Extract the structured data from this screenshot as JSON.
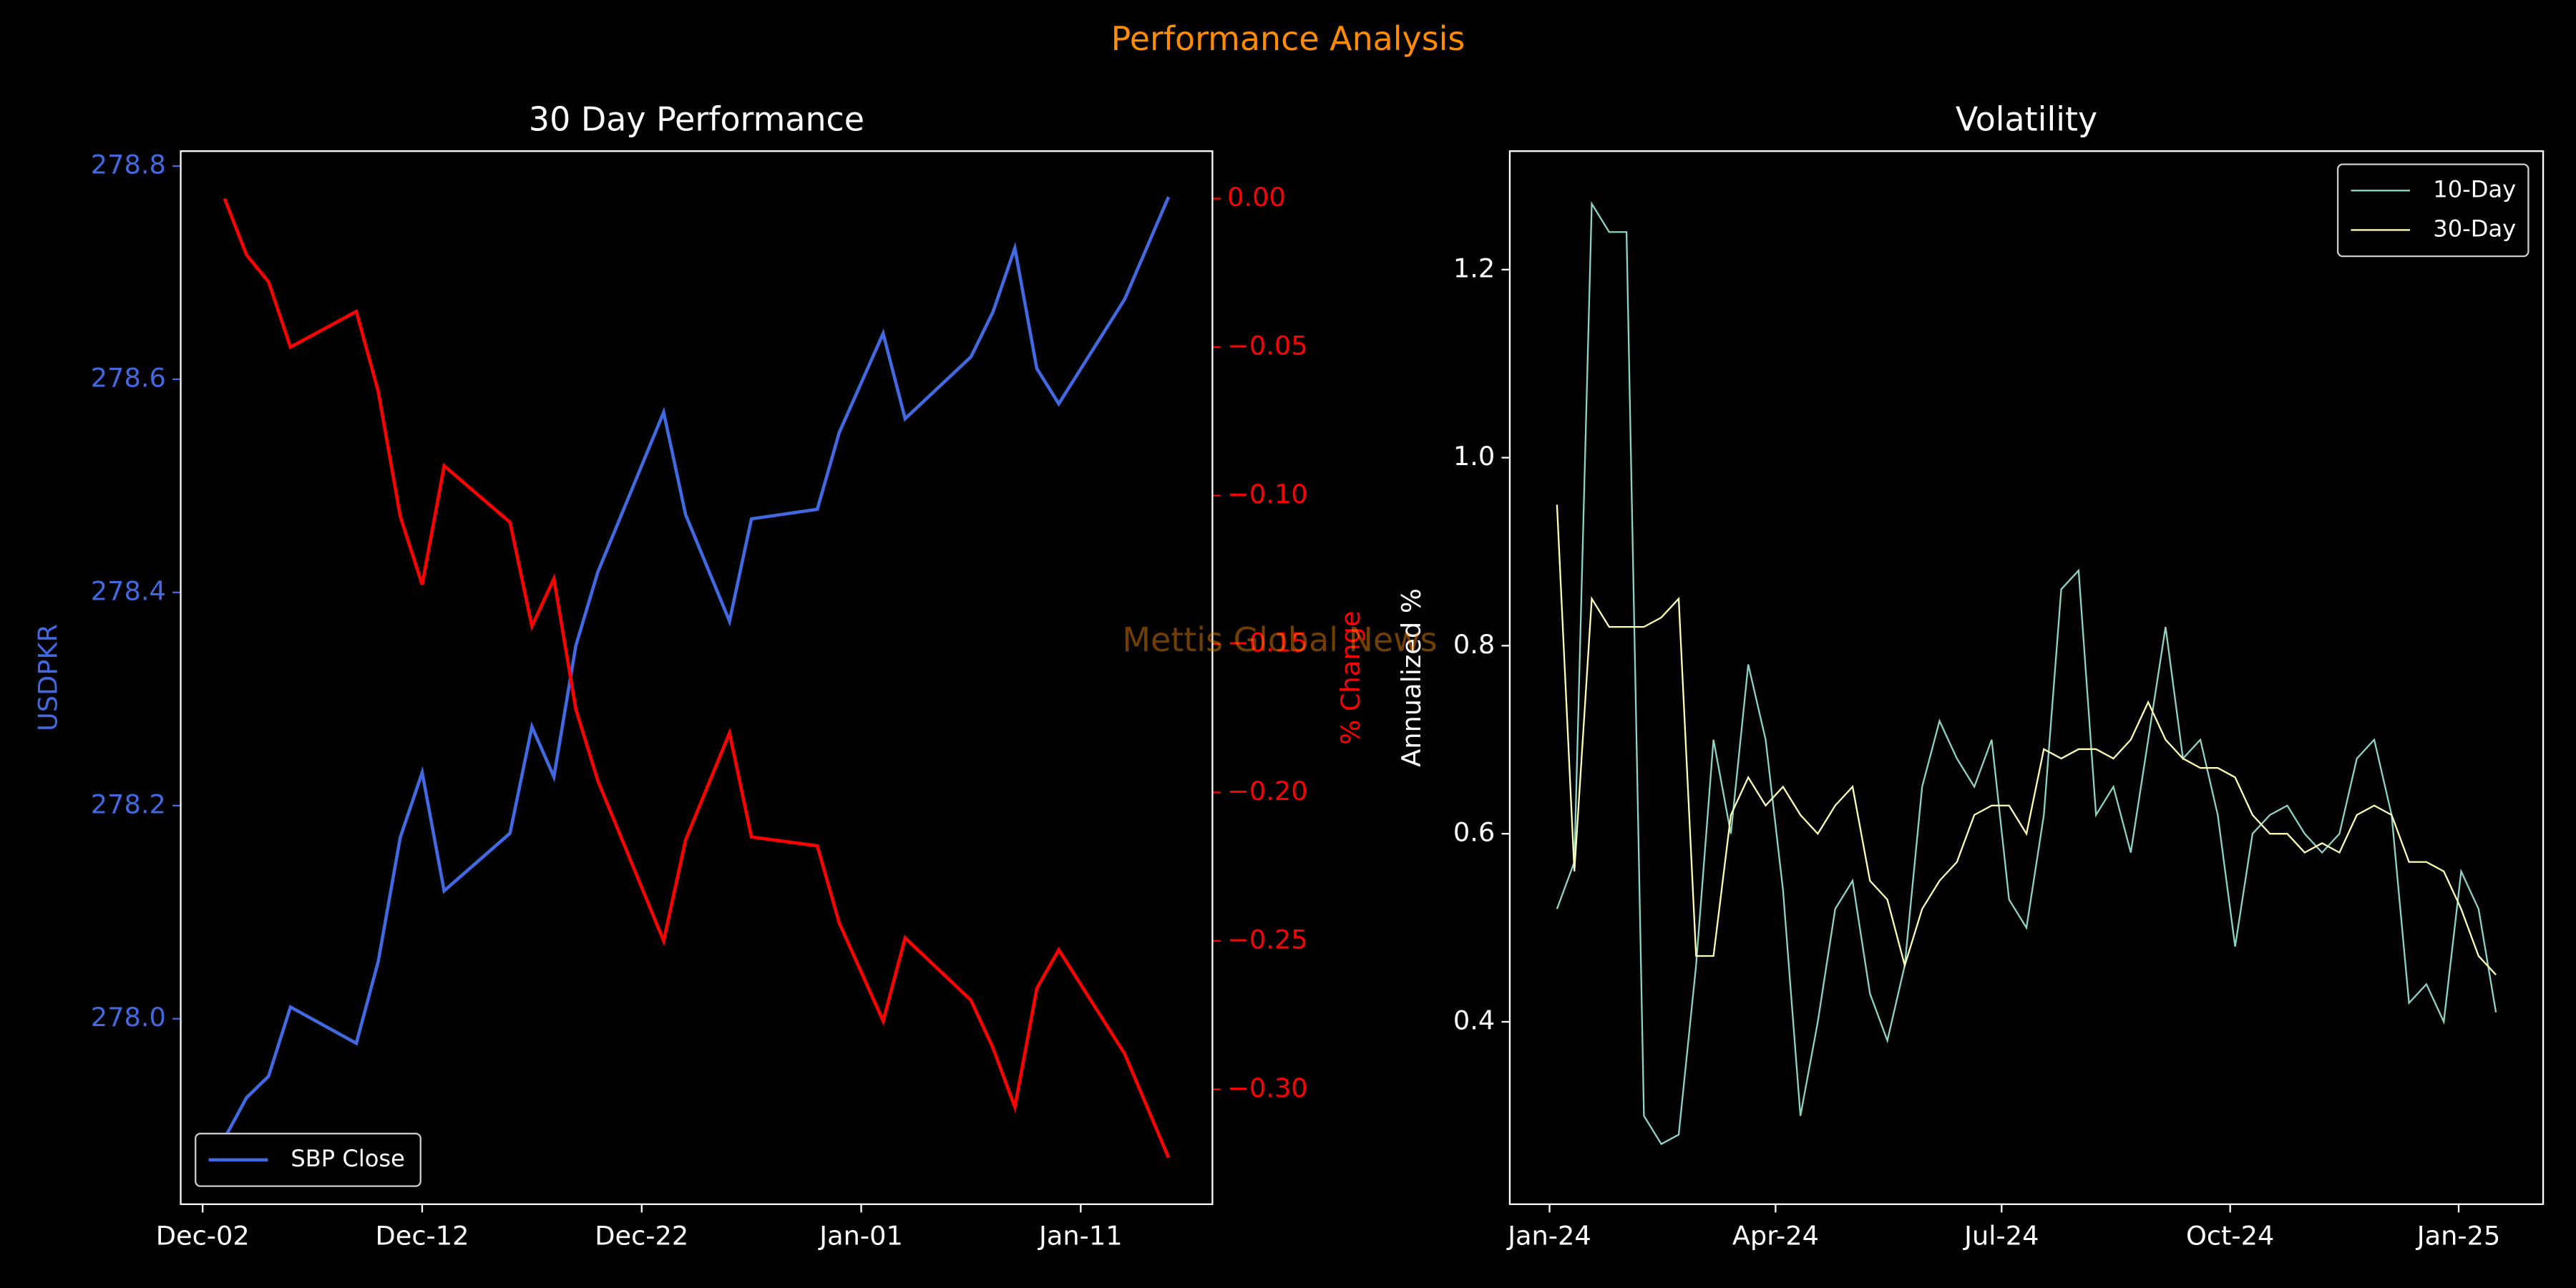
{
  "title": "Performance Analysis",
  "watermark": "Mettis Global News",
  "chart_data": [
    {
      "type": "line",
      "title": "30 Day Performance",
      "ylabel": "USDPKR",
      "y2label": "% Change",
      "x": [
        "Dec-03",
        "Dec-04",
        "Dec-05",
        "Dec-06",
        "Dec-09",
        "Dec-10",
        "Dec-11",
        "Dec-12",
        "Dec-13",
        "Dec-16",
        "Dec-17",
        "Dec-18",
        "Dec-19",
        "Dec-20",
        "Dec-23",
        "Dec-24",
        "Dec-26",
        "Dec-27",
        "Dec-30",
        "Dec-31",
        "Jan-02",
        "Jan-03",
        "Jan-06",
        "Jan-07",
        "Jan-08",
        "Jan-09",
        "Jan-10",
        "Jan-13",
        "Jan-15"
      ],
      "xlim": [
        "Dec-01",
        "Jan-17"
      ],
      "xticks": [
        "Dec-02",
        "Dec-12",
        "Dec-22",
        "Jan-01",
        "Jan-11"
      ],
      "ylim": [
        277.826,
        278.814
      ],
      "yticks": [
        {
          "value": 278.0,
          "label": "278.0"
        },
        278.2,
        278.4,
        278.6,
        278.8
      ],
      "y2lim": [
        -0.3387,
        0.016
      ],
      "y2ticks": [
        {
          "value": 0,
          "label": "0.00"
        },
        {
          "value": -0.05,
          "label": "−0.05"
        },
        {
          "value": -0.1,
          "label": "−0.10"
        },
        {
          "value": -0.15,
          "label": "−0.15"
        },
        {
          "value": -0.2,
          "label": "−0.20"
        },
        {
          "value": -0.25,
          "label": "−0.25"
        },
        {
          "value": -0.3,
          "label": "−0.30"
        }
      ],
      "legend": "lower left",
      "series": [
        {
          "name": "SBP Close",
          "color": "#4169e1",
          "values": [
            277.888,
            277.926,
            277.946,
            278.011,
            277.977,
            278.054,
            278.17,
            278.231,
            278.12,
            278.174,
            278.274,
            278.227,
            278.35,
            278.419,
            278.569,
            278.473,
            278.373,
            278.469,
            278.478,
            278.55,
            278.643,
            278.563,
            278.621,
            278.663,
            278.723,
            278.61,
            278.577,
            278.675,
            278.771
          ]
        },
        {
          "color": "#ff0000",
          "axis": "y2",
          "values": [
            0.0,
            -0.019,
            -0.028,
            -0.05,
            -0.038,
            -0.065,
            -0.107,
            -0.13,
            -0.09,
            -0.109,
            -0.144,
            -0.128,
            -0.172,
            -0.196,
            -0.25,
            -0.216,
            -0.18,
            -0.215,
            -0.218,
            -0.244,
            -0.277,
            -0.249,
            -0.27,
            -0.286,
            -0.306,
            -0.266,
            -0.253,
            -0.288,
            -0.323
          ]
        }
      ]
    },
    {
      "type": "line",
      "title": "Volatility",
      "ylabel": "Annualized %",
      "x": [
        "2024-01-04",
        "2024-01-11",
        "2024-01-18",
        "2024-01-25",
        "2024-02-01",
        "2024-02-08",
        "2024-02-15",
        "2024-02-22",
        "2024-02-29",
        "2024-03-07",
        "2024-03-14",
        "2024-03-21",
        "2024-03-28",
        "2024-04-04",
        "2024-04-11",
        "2024-04-18",
        "2024-04-25",
        "2024-05-02",
        "2024-05-09",
        "2024-05-16",
        "2024-05-23",
        "2024-05-30",
        "2024-06-06",
        "2024-06-13",
        "2024-06-20",
        "2024-06-27",
        "2024-07-04",
        "2024-07-11",
        "2024-07-18",
        "2024-07-25",
        "2024-08-01",
        "2024-08-08",
        "2024-08-15",
        "2024-08-22",
        "2024-08-29",
        "2024-09-05",
        "2024-09-12",
        "2024-09-19",
        "2024-09-26",
        "2024-10-03",
        "2024-10-10",
        "2024-10-17",
        "2024-10-24",
        "2024-10-31",
        "2024-11-07",
        "2024-11-14",
        "2024-11-21",
        "2024-11-28",
        "2024-12-05",
        "2024-12-12",
        "2024-12-19",
        "2024-12-26",
        "2025-01-02",
        "2025-01-09",
        "2025-01-16"
      ],
      "xlim": [
        "2023-12-16",
        "2025-02-04"
      ],
      "xticks": [
        {
          "value": "2024-01",
          "label": "Jan-24"
        },
        {
          "value": "2024-04",
          "label": "Apr-24"
        },
        {
          "value": "2024-07",
          "label": "Jul-24"
        },
        {
          "value": "2024-10",
          "label": "Oct-24"
        },
        {
          "value": "2025-01",
          "label": "Jan-25"
        }
      ],
      "ylim": [
        0.206,
        1.326
      ],
      "yticks": [
        0.4,
        0.6,
        0.8,
        {
          "value": 1.0,
          "label": "1.0"
        },
        1.2
      ],
      "legend": "upper right",
      "series": [
        {
          "name": "10-Day",
          "color": "#8dd3c7",
          "values": [
            0.52,
            0.57,
            1.27,
            1.24,
            1.24,
            0.3,
            0.27,
            0.28,
            0.46,
            0.7,
            0.6,
            0.78,
            0.7,
            0.54,
            0.3,
            0.4,
            0.52,
            0.55,
            0.43,
            0.38,
            0.46,
            0.65,
            0.72,
            0.68,
            0.65,
            0.7,
            0.53,
            0.5,
            0.62,
            0.86,
            0.88,
            0.62,
            0.65,
            0.58,
            0.7,
            0.82,
            0.68,
            0.7,
            0.62,
            0.48,
            0.6,
            0.62,
            0.63,
            0.6,
            0.58,
            0.6,
            0.68,
            0.7,
            0.62,
            0.42,
            0.44,
            0.4,
            0.56,
            0.52,
            0.41
          ]
        },
        {
          "name": "30-Day",
          "color": "#ffffb3",
          "values": [
            0.95,
            0.56,
            0.85,
            0.82,
            0.82,
            0.82,
            0.83,
            0.85,
            0.47,
            0.47,
            0.62,
            0.66,
            0.63,
            0.65,
            0.62,
            0.6,
            0.63,
            0.65,
            0.55,
            0.53,
            0.46,
            0.52,
            0.55,
            0.57,
            0.62,
            0.63,
            0.63,
            0.6,
            0.69,
            0.68,
            0.69,
            0.69,
            0.68,
            0.7,
            0.74,
            0.7,
            0.68,
            0.67,
            0.67,
            0.66,
            0.62,
            0.6,
            0.6,
            0.58,
            0.59,
            0.58,
            0.62,
            0.63,
            0.62,
            0.57,
            0.57,
            0.56,
            0.52,
            0.47,
            0.45
          ]
        }
      ]
    }
  ]
}
